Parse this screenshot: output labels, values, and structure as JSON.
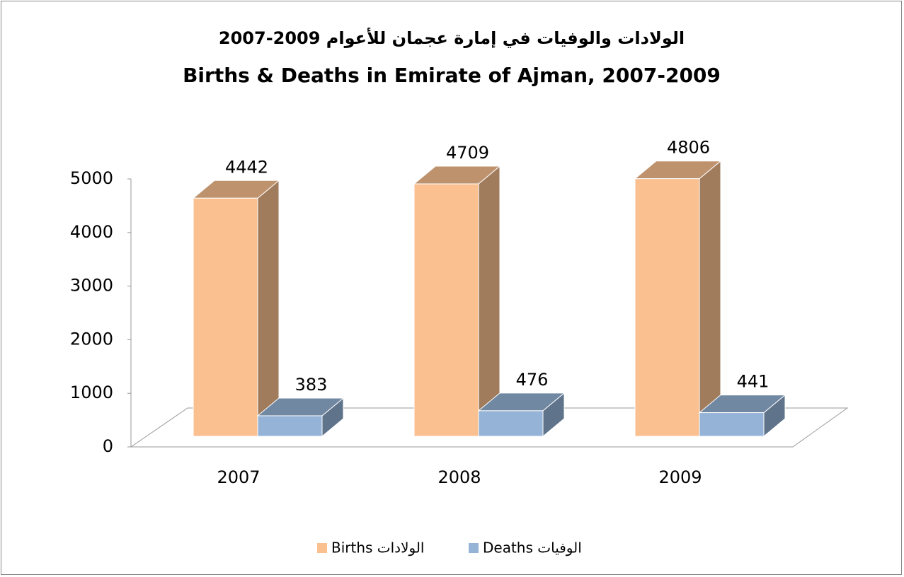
{
  "chart_data": {
    "type": "bar3d",
    "title_ar": "الولادات والوفيات في إمارة عجمان للأعوام 2009-2007",
    "title": "Births & Deaths in Emirate of Ajman, 2007-2009",
    "categories": [
      "2007",
      "2008",
      "2009"
    ],
    "series": [
      {
        "name": "Births الولادات",
        "color": "#FAC090",
        "values": [
          4442,
          4709,
          4806
        ]
      },
      {
        "name": "Deaths الوفيات",
        "color": "#95B3D7",
        "values": [
          383,
          476,
          441
        ]
      }
    ],
    "ylim": [
      0,
      5000
    ],
    "yticks": [
      0,
      1000,
      2000,
      3000,
      4000,
      5000
    ],
    "legend": "bottom"
  }
}
